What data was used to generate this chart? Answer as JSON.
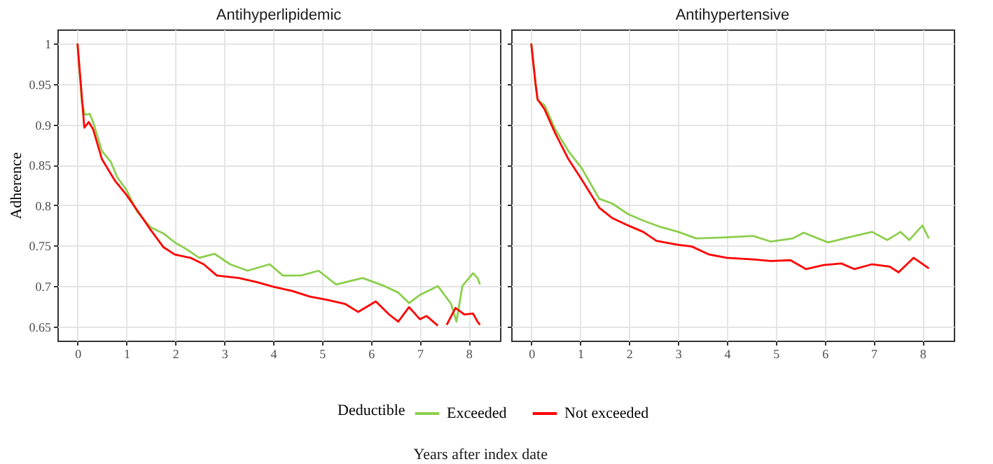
{
  "chart_data": [
    {
      "type": "line",
      "title": "Antihyperlipidemic",
      "xlabel": "Years after index date",
      "ylabel": "Adherence",
      "legend_title": "Deductible",
      "legend": "bottom",
      "grid": true,
      "xlim": [
        -0.41,
        8.64
      ],
      "xticks": [
        0,
        1,
        2,
        3,
        4,
        5,
        6,
        7,
        8
      ],
      "ylim": [
        0.6325,
        1.0175
      ],
      "yticks": [
        0.65,
        0.7,
        0.75,
        0.8,
        0.85,
        0.9,
        0.95,
        1
      ],
      "series": [
        {
          "name": "Exceeded",
          "color": "#8ccf4d",
          "x": [
            0,
            0.09,
            0.15,
            0.25,
            0.32,
            0.5,
            0.68,
            0.81,
            1.0,
            1.22,
            1.49,
            1.76,
            1.99,
            2.22,
            2.49,
            2.8,
            3.12,
            3.48,
            3.93,
            4.2,
            4.57,
            4.93,
            5.29,
            5.83,
            6.28,
            6.56,
            6.78,
            7.0,
            7.37,
            7.64,
            7.75,
            7.87,
            8.09,
            8.18,
            8.23
          ],
          "values": [
            1.0,
            0.927,
            0.912,
            0.913,
            0.903,
            0.867,
            0.854,
            0.835,
            0.819,
            0.792,
            0.773,
            0.765,
            0.754,
            0.746,
            0.735,
            0.74,
            0.727,
            0.719,
            0.727,
            0.713,
            0.713,
            0.719,
            0.702,
            0.71,
            0.7,
            0.692,
            0.679,
            0.689,
            0.7,
            0.678,
            0.656,
            0.7,
            0.716,
            0.71,
            0.702
          ]
        },
        {
          "name": "Not exceeded",
          "color": "#ff0000",
          "x": [
            0,
            0.07,
            0.14,
            0.23,
            0.32,
            0.5,
            0.77,
            1.0,
            1.31,
            1.49,
            1.76,
            1.99,
            2.31,
            2.58,
            2.85,
            3.3,
            3.66,
            4.02,
            4.39,
            4.75,
            5.11,
            5.47,
            5.74,
            6.1,
            6.37,
            6.56,
            6.78,
            7.0,
            7.14,
            7.37,
            7.45,
            7.55,
            7.73,
            7.91,
            8.09,
            8.18,
            8.23
          ],
          "values": [
            1.0,
            0.949,
            0.896,
            0.903,
            0.894,
            0.857,
            0.83,
            0.813,
            0.786,
            0.77,
            0.748,
            0.739,
            0.735,
            0.727,
            0.713,
            0.71,
            0.705,
            0.699,
            0.694,
            0.687,
            0.683,
            0.678,
            0.668,
            0.681,
            0.665,
            0.656,
            0.674,
            0.659,
            0.663,
            0.651,
            null,
            0.652,
            0.673,
            0.665,
            0.666,
            0.656,
            0.652
          ]
        }
      ]
    },
    {
      "type": "line",
      "title": "Antihypertensive",
      "grid": true,
      "tick_labels": "x",
      "xlim": [
        -0.41,
        8.64
      ],
      "xticks": [
        0,
        1,
        2,
        3,
        4,
        5,
        6,
        7,
        8
      ],
      "ylim": [
        0.6325,
        1.0175
      ],
      "yticks": [
        0.65,
        0.7,
        0.75,
        0.8,
        0.85,
        0.9,
        0.95,
        1
      ],
      "series": [
        {
          "name": "Exceeded",
          "color": "#8ccf4d",
          "x": [
            0,
            0.09,
            0.13,
            0.27,
            0.49,
            0.76,
            1.03,
            1.39,
            1.66,
            1.98,
            2.29,
            2.65,
            3.01,
            3.37,
            3.91,
            4.54,
            4.9,
            5.35,
            5.57,
            6.07,
            6.61,
            6.97,
            7.28,
            7.55,
            7.73,
            8.0,
            8.13
          ],
          "values": [
            1.0,
            0.949,
            0.93,
            0.924,
            0.894,
            0.867,
            0.846,
            0.808,
            0.802,
            0.789,
            0.781,
            0.773,
            0.767,
            0.759,
            0.76,
            0.762,
            0.755,
            0.759,
            0.766,
            0.754,
            0.762,
            0.767,
            0.757,
            0.767,
            0.757,
            0.775,
            0.759
          ]
        },
        {
          "name": "Not exceeded",
          "color": "#ff0000",
          "x": [
            0,
            0.09,
            0.13,
            0.27,
            0.49,
            0.76,
            1.03,
            1.39,
            1.66,
            1.98,
            2.29,
            2.56,
            3.01,
            3.28,
            3.64,
            4.0,
            4.54,
            4.9,
            5.3,
            5.62,
            5.98,
            6.34,
            6.61,
            6.97,
            7.33,
            7.51,
            7.82,
            8.13
          ],
          "values": [
            1.0,
            0.949,
            0.931,
            0.919,
            0.889,
            0.857,
            0.832,
            0.797,
            0.784,
            0.775,
            0.767,
            0.756,
            0.751,
            0.749,
            0.739,
            0.735,
            0.733,
            0.731,
            0.732,
            0.721,
            0.726,
            0.728,
            0.721,
            0.727,
            0.724,
            0.717,
            0.735,
            0.722
          ]
        }
      ]
    }
  ]
}
